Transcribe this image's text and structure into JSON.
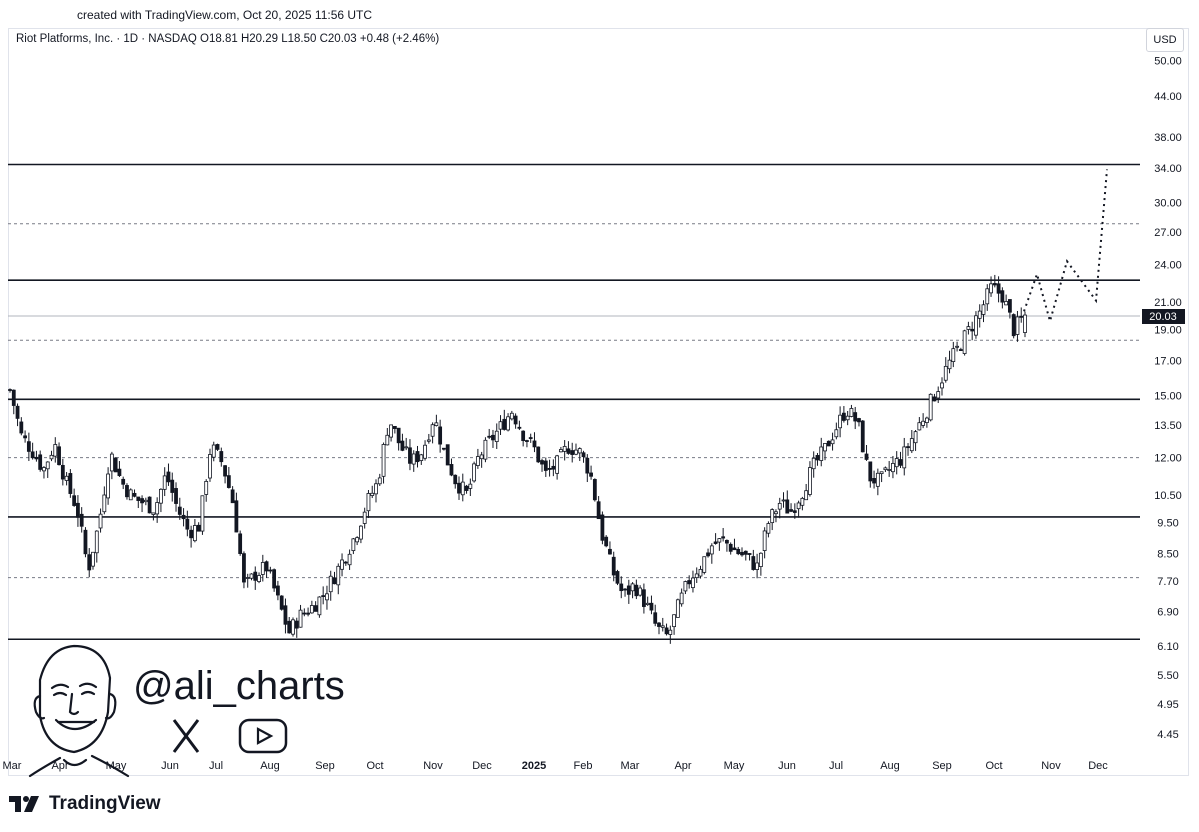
{
  "header": {
    "created_text": "created with TradingView.com, Oct 20, 2025 11:56 UTC"
  },
  "legend": {
    "text": "Riot Platforms, Inc. · 1D · NASDAQ  O18.81  H20.29  L18.50  C20.03  +0.48 (+2.46%)"
  },
  "currency_label": "USD",
  "watermark": {
    "handle": "@ali_charts",
    "icons": [
      "face-portrait-icon",
      "x-logo-icon",
      "youtube-icon"
    ]
  },
  "brand": {
    "name": "TradingView",
    "icon": "tradingview-logo-icon"
  },
  "chart_data": {
    "type": "candlestick",
    "symbol": "Riot Platforms, Inc.",
    "interval": "1D",
    "exchange": "NASDAQ",
    "log_scale": true,
    "ylim": [
      4.0,
      55.0
    ],
    "y_ticks": [
      50.0,
      44.0,
      38.0,
      34.0,
      30.0,
      27.0,
      24.0,
      21.0,
      19.0,
      17.0,
      15.0,
      13.5,
      12.0,
      10.5,
      9.5,
      8.5,
      7.7,
      6.9,
      6.1,
      5.5,
      4.95,
      4.45
    ],
    "y_tick_labels": [
      "50.00",
      "44.00",
      "38.00",
      "34.00",
      "30.00",
      "27.00",
      "24.00",
      "21.00",
      "19.00",
      "17.00",
      "15.00",
      "13.50",
      "12.00",
      "10.50",
      "9.50",
      "8.50",
      "7.70",
      "6.90",
      "6.10",
      "5.50",
      "4.95",
      "4.45"
    ],
    "x_labels": [
      "Mar",
      "Apr",
      "May",
      "Jun",
      "Jul",
      "Aug",
      "Sep",
      "Oct",
      "Nov",
      "Dec",
      "2025",
      "Feb",
      "Mar",
      "Apr",
      "May",
      "Jun",
      "Jul",
      "Aug",
      "Sep",
      "Oct",
      "Nov",
      "Dec"
    ],
    "last_price": 20.03,
    "last_price_label": "20.03",
    "horizontal_levels_solid": [
      34.4,
      22.7,
      14.8,
      9.7,
      6.25
    ],
    "horizontal_levels_dashed": [
      27.8,
      18.3,
      12.0,
      7.8
    ],
    "projection_path": [
      20.3,
      23.2,
      19.6,
      24.3,
      21.1,
      33.8,
      32.5
    ],
    "price_path": [
      15.3,
      13.0,
      12.3,
      11.5,
      12.6,
      11.0,
      10.0,
      8.0,
      9.5,
      12.2,
      11.0,
      10.4,
      10.2,
      10.0,
      11.3,
      10.0,
      9.2,
      9.4,
      12.5,
      11.8,
      10.2,
      7.5,
      7.9,
      8.1,
      7.2,
      6.4,
      6.8,
      7.0,
      7.3,
      7.8,
      8.4,
      9.1,
      10.2,
      11.0,
      13.8,
      12.5,
      11.8,
      12.3,
      13.9,
      12.1,
      11.0,
      10.5,
      12.0,
      12.7,
      13.4,
      14.2,
      13.1,
      12.4,
      11.3,
      11.7,
      12.5,
      12.3,
      11.4,
      9.2,
      8.0,
      7.3,
      7.6,
      7.1,
      6.5,
      6.3,
      7.1,
      7.8,
      8.2,
      8.8,
      8.9,
      8.6,
      8.4,
      8.1,
      9.5,
      10.2,
      9.9,
      10.6,
      11.6,
      12.3,
      13.3,
      14.3,
      13.6,
      11.2,
      11.0,
      11.6,
      12.0,
      13.0,
      14.0,
      15.2,
      16.6,
      17.8,
      19.0,
      20.3,
      22.1,
      21.5,
      19.0,
      20.03
    ]
  }
}
